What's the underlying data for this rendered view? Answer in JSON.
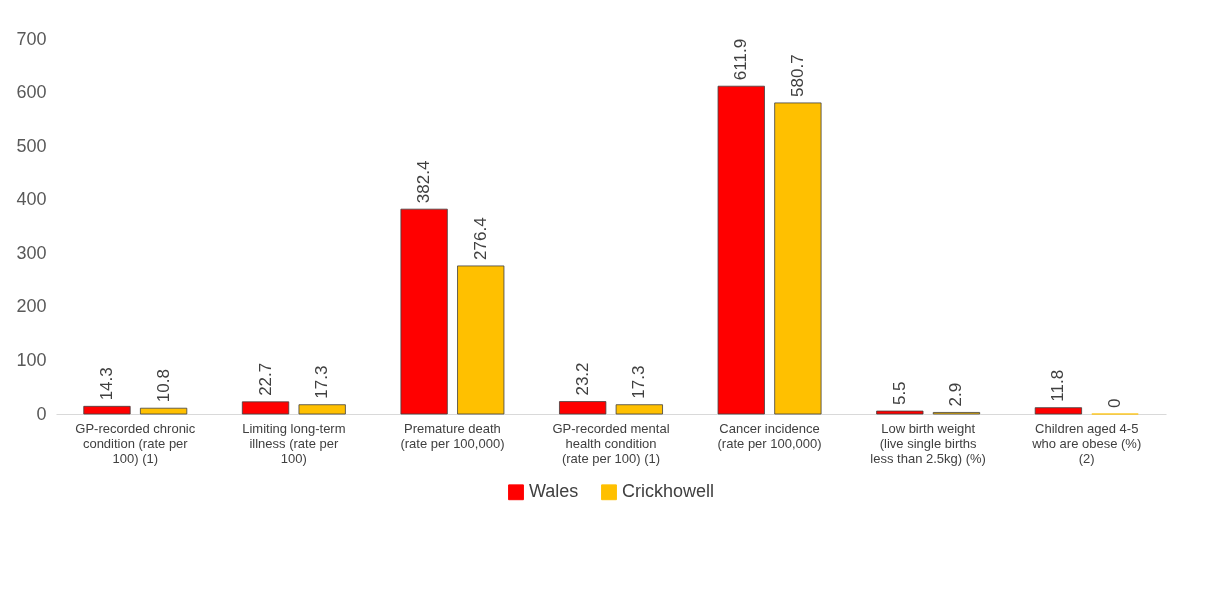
{
  "chart_data": {
    "type": "bar",
    "categories": [
      "GP-recorded chronic condition (rate per 100) (1)",
      "Limiting long-term illness (rate per 100)",
      "Premature death (rate per 100,000)",
      "GP-recorded mental health condition (rate per 100) (1)",
      "Cancer incidence (rate per 100,000)",
      "Low birth weight (live single births less than 2.5kg) (%)",
      "Children aged 4-5 who are obese (%) (2)"
    ],
    "series": [
      {
        "name": "Wales",
        "color": "#ff0000",
        "values": [
          14.3,
          22.7,
          382.4,
          23.2,
          611.9,
          5.5,
          11.8
        ]
      },
      {
        "name": "Crickhowell",
        "color": "#ffc000",
        "values": [
          10.8,
          17.3,
          276.4,
          17.3,
          580.7,
          2.9,
          0
        ]
      }
    ],
    "ylim": [
      0,
      700
    ],
    "yticks": [
      0,
      100,
      200,
      300,
      400,
      500,
      600,
      700
    ],
    "data_labels": true,
    "legend": "bottom"
  }
}
